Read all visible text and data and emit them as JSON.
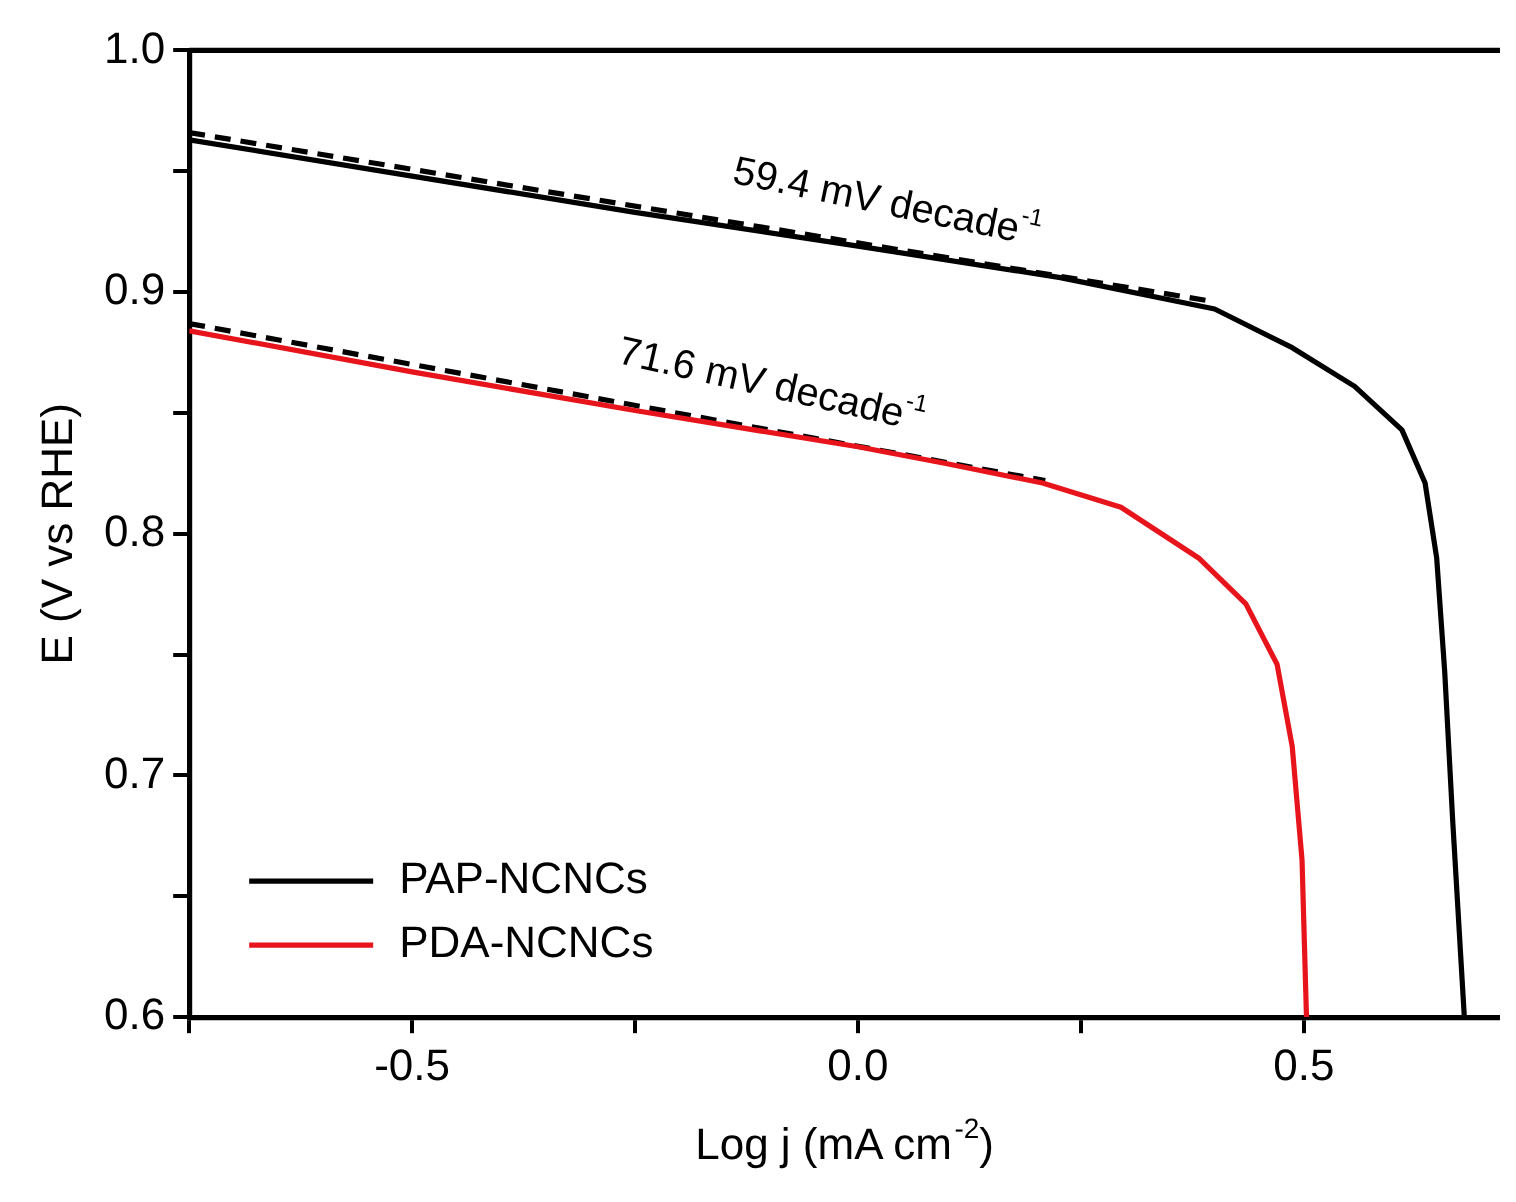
{
  "chart_data": {
    "type": "line",
    "xlabel": "Log j (mA cm$^{-2}$)",
    "ylabel": "E (V vs RHE)",
    "xlim": [
      -0.75,
      0.72
    ],
    "xticks": [
      {
        "value": -0.75,
        "label": null
      },
      -0.5,
      {
        "value": -0.25,
        "label": null
      },
      {
        "value": 0,
        "label": "0.0"
      },
      {
        "value": 0.25,
        "label": null
      },
      0.5
    ],
    "ylim": [
      0.6,
      1.0
    ],
    "yticks": [
      0.6,
      {
        "value": 0.65,
        "label": null
      },
      0.7,
      {
        "value": 0.75,
        "label": null
      },
      0.8,
      {
        "value": 0.85,
        "label": null
      },
      0.9,
      {
        "value": 0.95,
        "label": null
      },
      {
        "value": 1,
        "label": "1.0"
      }
    ],
    "grid": false,
    "legend": "bottom left",
    "marker": "none",
    "line_style": "solid",
    "series": [
      {
        "name": "PAP-NCNCs",
        "color": "#000000",
        "x": [
          -0.75,
          -0.5,
          -0.25,
          0,
          0.227,
          0.4,
          0.487,
          0.557,
          0.61,
          0.636,
          0.649,
          0.658,
          0.667,
          0.68
        ],
        "values": [
          0.963,
          0.948,
          0.933,
          0.919,
          0.906,
          0.893,
          0.877,
          0.861,
          0.843,
          0.821,
          0.79,
          0.743,
          0.681,
          0.6
        ]
      },
      {
        "name": "PDA-NCNCs",
        "color": "#e8141c",
        "x": [
          -0.75,
          -0.5,
          -0.25,
          0,
          0.1,
          0.207,
          0.295,
          0.382,
          0.435,
          0.47,
          0.487,
          0.498,
          0.503
        ],
        "values": [
          0.884,
          0.867,
          0.851,
          0.836,
          0.829,
          0.821,
          0.811,
          0.79,
          0.771,
          0.746,
          0.712,
          0.665,
          0.6
        ]
      },
      {
        "type": "line",
        "line_style": "dashed",
        "color": "#000000",
        "x": [
          -0.75,
          0.4
        ],
        "values": [
          0.966,
          0.896
        ]
      },
      {
        "type": "line",
        "line_style": "dashed",
        "color": "#000000",
        "x": [
          -0.75,
          0.21
        ],
        "values": [
          0.887,
          0.822
        ]
      }
    ],
    "annotations": [
      "59.4 mV decade$^{-1}$",
      "71.6 mV decade$^{-1}$"
    ]
  }
}
